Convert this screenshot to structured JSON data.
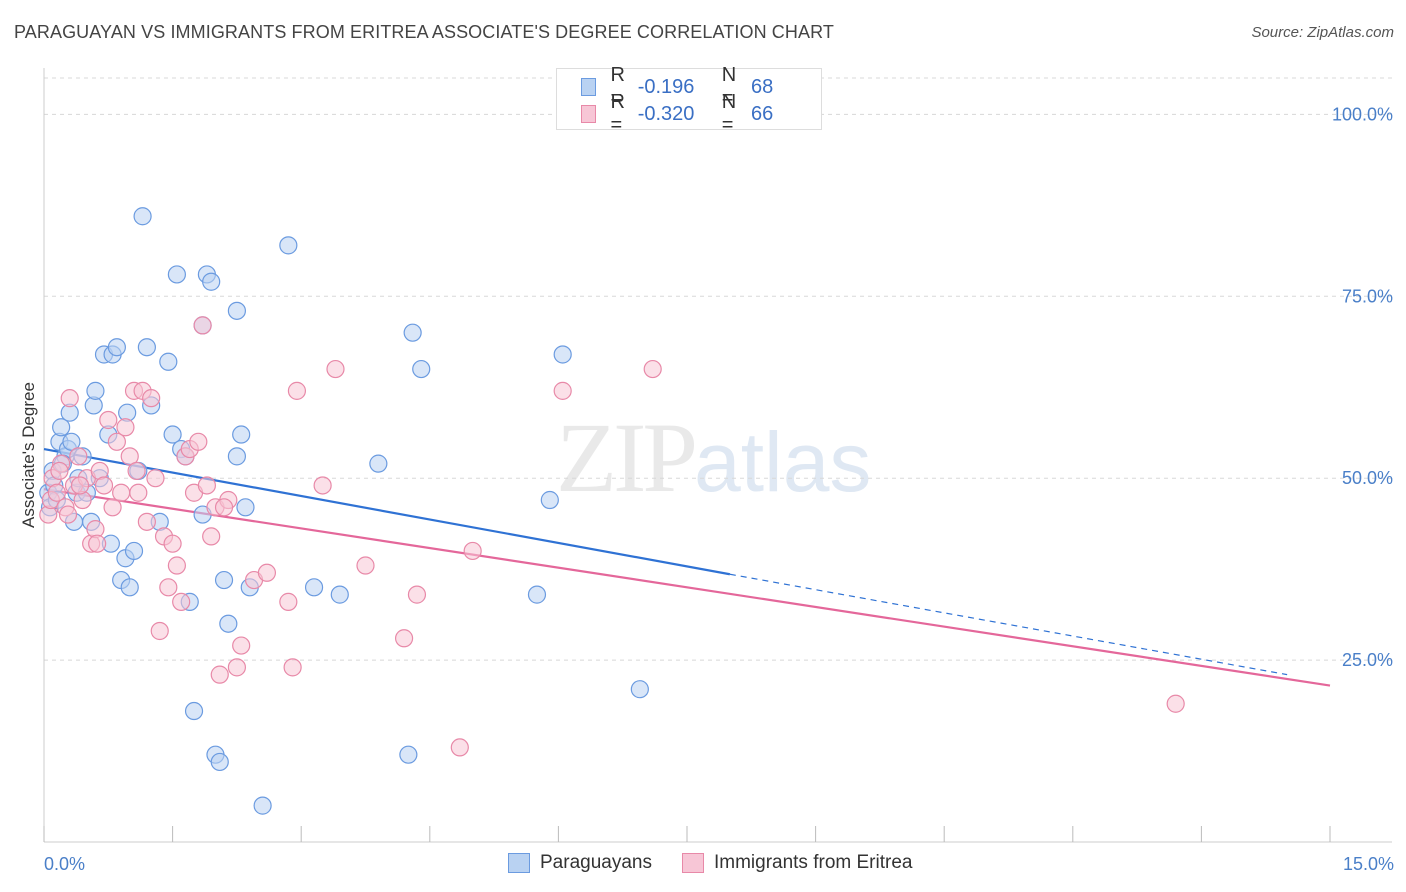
{
  "title": "PARAGUAYAN VS IMMIGRANTS FROM ERITREA ASSOCIATE'S DEGREE CORRELATION CHART",
  "source": "Source: ZipAtlas.com",
  "watermark": {
    "zip": "ZIP",
    "atlas": "atlas"
  },
  "legend": {
    "r_label": "R =",
    "n_label": "N =",
    "rows": [
      {
        "r": "-0.196",
        "n": "68",
        "fill": "#b9d2f2",
        "stroke": "#6b9be0"
      },
      {
        "r": "-0.320",
        "n": "66",
        "fill": "#f7c6d6",
        "stroke": "#e889a8"
      }
    ]
  },
  "bottom_legend": [
    {
      "label": "Paraguayans",
      "fill": "#b9d2f2",
      "stroke": "#6b9be0"
    },
    {
      "label": "Immigrants from Eritrea",
      "fill": "#f7c6d6",
      "stroke": "#e889a8"
    }
  ],
  "chart_data": {
    "type": "scatter",
    "title": "PARAGUAYAN VS IMMIGRANTS FROM ERITREA ASSOCIATE'S DEGREE CORRELATION CHART",
    "xlabel": "",
    "ylabel": "Associate's Degree",
    "xlim": [
      0,
      15
    ],
    "ylim": [
      0,
      105
    ],
    "x_tick_labels": [
      "0.0%",
      "15.0%"
    ],
    "y_ticks": [
      25,
      50,
      75,
      100
    ],
    "y_tick_labels": [
      "25.0%",
      "50.0%",
      "75.0%",
      "100.0%"
    ],
    "grid": true,
    "series": [
      {
        "name": "Paraguayans",
        "color": "#6b9be0",
        "fill": "#b9d2f2",
        "trend_color": "#2f72d4",
        "trend": {
          "x0": 0.0,
          "y0": 54.0,
          "x1": 8.0,
          "y1": 36.8,
          "dash_to_x": 14.5,
          "dash_to_y": 23.0
        },
        "points": [
          [
            0.05,
            48
          ],
          [
            0.07,
            46
          ],
          [
            0.1,
            51
          ],
          [
            0.12,
            49
          ],
          [
            0.15,
            47
          ],
          [
            0.18,
            55
          ],
          [
            0.2,
            57
          ],
          [
            0.25,
            53
          ],
          [
            0.28,
            54
          ],
          [
            0.3,
            59
          ],
          [
            0.35,
            44
          ],
          [
            0.38,
            48
          ],
          [
            0.4,
            50
          ],
          [
            0.45,
            53
          ],
          [
            0.5,
            48
          ],
          [
            0.55,
            44
          ],
          [
            0.58,
            60
          ],
          [
            0.6,
            62
          ],
          [
            0.65,
            50
          ],
          [
            0.7,
            67
          ],
          [
            0.75,
            56
          ],
          [
            0.78,
            41
          ],
          [
            0.8,
            67
          ],
          [
            0.85,
            68
          ],
          [
            0.9,
            36
          ],
          [
            0.95,
            39
          ],
          [
            0.97,
            59
          ],
          [
            1.0,
            35
          ],
          [
            1.05,
            40
          ],
          [
            1.1,
            51
          ],
          [
            1.15,
            86
          ],
          [
            1.2,
            68
          ],
          [
            1.25,
            60
          ],
          [
            1.35,
            44
          ],
          [
            1.45,
            66
          ],
          [
            1.5,
            56
          ],
          [
            1.55,
            78
          ],
          [
            1.6,
            54
          ],
          [
            1.65,
            53
          ],
          [
            1.7,
            33
          ],
          [
            1.75,
            18
          ],
          [
            1.85,
            71
          ],
          [
            1.9,
            78
          ],
          [
            1.95,
            77
          ],
          [
            2.0,
            12
          ],
          [
            2.05,
            11
          ],
          [
            2.1,
            36
          ],
          [
            2.15,
            30
          ],
          [
            2.25,
            73
          ],
          [
            2.25,
            53
          ],
          [
            2.3,
            56
          ],
          [
            2.35,
            46
          ],
          [
            2.4,
            35
          ],
          [
            2.55,
            5
          ],
          [
            2.85,
            82
          ],
          [
            3.15,
            35
          ],
          [
            3.45,
            34
          ],
          [
            3.9,
            52
          ],
          [
            4.25,
            12
          ],
          [
            4.3,
            70
          ],
          [
            4.4,
            65
          ],
          [
            5.75,
            34
          ],
          [
            5.9,
            47
          ],
          [
            6.05,
            67
          ],
          [
            6.95,
            21
          ],
          [
            1.85,
            45
          ],
          [
            0.32,
            55
          ],
          [
            0.22,
            52
          ]
        ]
      },
      {
        "name": "Immigrants from Eritrea",
        "color": "#e889a8",
        "fill": "#f7c6d6",
        "trend_color": "#e4679a",
        "trend": {
          "x0": 0.0,
          "y0": 48.5,
          "x1": 15.0,
          "y1": 21.5
        },
        "points": [
          [
            0.05,
            45
          ],
          [
            0.08,
            47
          ],
          [
            0.1,
            50
          ],
          [
            0.15,
            48
          ],
          [
            0.2,
            52
          ],
          [
            0.25,
            46
          ],
          [
            0.3,
            61
          ],
          [
            0.35,
            49
          ],
          [
            0.4,
            53
          ],
          [
            0.45,
            47
          ],
          [
            0.5,
            50
          ],
          [
            0.55,
            41
          ],
          [
            0.6,
            43
          ],
          [
            0.65,
            51
          ],
          [
            0.7,
            49
          ],
          [
            0.75,
            58
          ],
          [
            0.8,
            46
          ],
          [
            0.85,
            55
          ],
          [
            0.9,
            48
          ],
          [
            0.95,
            57
          ],
          [
            1.0,
            53
          ],
          [
            1.05,
            62
          ],
          [
            1.1,
            48
          ],
          [
            1.15,
            62
          ],
          [
            1.2,
            44
          ],
          [
            1.25,
            61
          ],
          [
            1.3,
            50
          ],
          [
            1.35,
            29
          ],
          [
            1.4,
            42
          ],
          [
            1.45,
            35
          ],
          [
            1.5,
            41
          ],
          [
            1.55,
            38
          ],
          [
            1.6,
            33
          ],
          [
            1.65,
            53
          ],
          [
            1.7,
            54
          ],
          [
            1.75,
            48
          ],
          [
            1.8,
            55
          ],
          [
            1.85,
            71
          ],
          [
            1.9,
            49
          ],
          [
            1.95,
            42
          ],
          [
            2.0,
            46
          ],
          [
            2.05,
            23
          ],
          [
            2.15,
            47
          ],
          [
            2.25,
            24
          ],
          [
            2.3,
            27
          ],
          [
            2.45,
            36
          ],
          [
            2.85,
            33
          ],
          [
            2.9,
            24
          ],
          [
            2.95,
            62
          ],
          [
            3.25,
            49
          ],
          [
            3.4,
            65
          ],
          [
            3.75,
            38
          ],
          [
            4.2,
            28
          ],
          [
            4.35,
            34
          ],
          [
            4.85,
            13
          ],
          [
            5.0,
            40
          ],
          [
            6.05,
            62
          ],
          [
            7.1,
            65
          ],
          [
            13.2,
            19
          ],
          [
            0.42,
            49
          ],
          [
            0.18,
            51
          ],
          [
            0.28,
            45
          ],
          [
            0.62,
            41
          ],
          [
            1.08,
            51
          ],
          [
            2.1,
            46
          ],
          [
            2.6,
            37
          ]
        ]
      }
    ]
  }
}
